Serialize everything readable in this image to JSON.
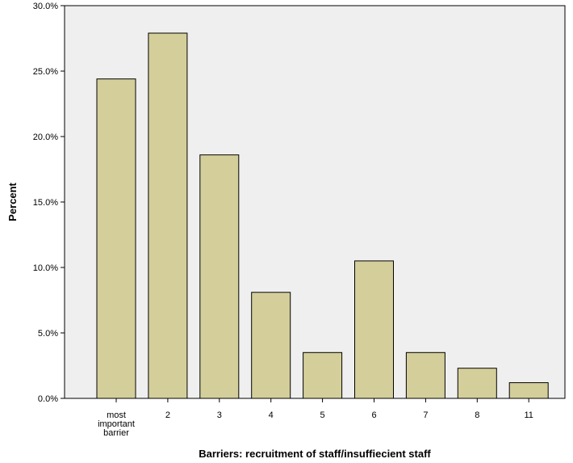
{
  "chart_data": {
    "type": "bar",
    "title": "",
    "xlabel": "Barriers: recruitment of staff/insuffiecient staff",
    "ylabel": "Percent",
    "categories": [
      "most important barrier",
      "2",
      "3",
      "4",
      "5",
      "6",
      "7",
      "8",
      "11"
    ],
    "values": [
      24.4,
      27.9,
      18.6,
      8.1,
      3.5,
      10.5,
      3.5,
      2.3,
      1.2
    ],
    "ylim": [
      0,
      30
    ],
    "yticks": [
      "0.0%",
      "5.0%",
      "10.0%",
      "15.0%",
      "20.0%",
      "25.0%",
      "30.0%"
    ],
    "grid": false,
    "legend": "none",
    "colors": {
      "bar_fill": "#d4cf9a",
      "bar_stroke": "#000000",
      "plot_background": "#efefef"
    }
  }
}
